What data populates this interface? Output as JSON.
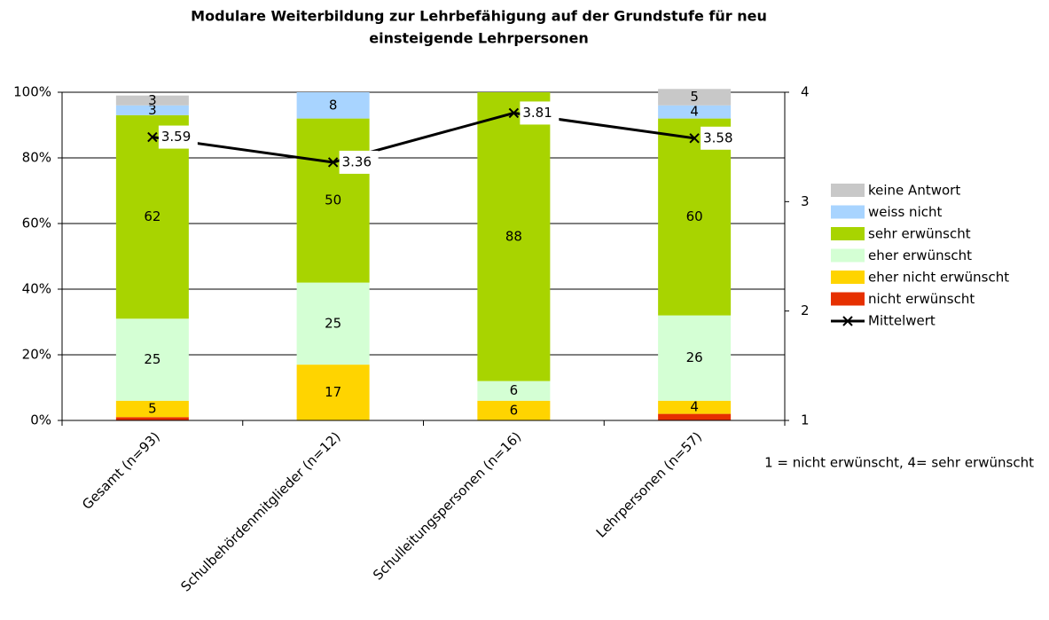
{
  "chart_data": {
    "type": "stacked_bar_line",
    "title": [
      "Modulare Weiterbildung zur Lehrbefähigung auf der Grundstufe für neu",
      "einsteigende Lehrpersonen"
    ],
    "categories": [
      "Gesamt (n=93)",
      "Schulbehördenmitglieder (n=12)",
      "Schulleitungspersonen (n=16)",
      "Lehrpersonen (n=57)"
    ],
    "series": [
      {
        "name": "nicht erwünscht",
        "color": "#e63000",
        "values": [
          1,
          0,
          0,
          2
        ],
        "labels": false
      },
      {
        "name": "eher nicht erwünscht",
        "color": "#ffd400",
        "values": [
          5,
          17,
          6,
          4
        ],
        "labels": true
      },
      {
        "name": "eher erwünscht",
        "color": "#d4ffd4",
        "values": [
          25,
          25,
          6,
          26
        ],
        "labels": true
      },
      {
        "name": "sehr erwünscht",
        "color": "#a8d400",
        "values": [
          62,
          50,
          88,
          60
        ],
        "labels": true
      },
      {
        "name": "weiss nicht",
        "color": "#a8d4ff",
        "values": [
          3,
          8,
          0,
          4
        ],
        "labels": true
      },
      {
        "name": "keine Antwort",
        "color": "#c8c8c8",
        "values": [
          3,
          0,
          0,
          5
        ],
        "labels": true
      },
      {
        "name": "Mittelwert",
        "color": "#000000",
        "type": "line",
        "axis": "y2",
        "values": [
          3.59,
          3.36,
          3.81,
          3.58
        ]
      }
    ],
    "ylim": [
      0,
      100
    ],
    "yticks": [
      {
        "value": 0,
        "label": "0%"
      },
      {
        "value": 20,
        "label": "20%"
      },
      {
        "value": 40,
        "label": "40%"
      },
      {
        "value": 60,
        "label": "60%"
      },
      {
        "value": 80,
        "label": "80%"
      },
      {
        "value": 100,
        "label": "100%"
      }
    ],
    "y2lim": [
      1,
      4
    ],
    "y2ticks": [
      1,
      2,
      3,
      4
    ],
    "grid": true,
    "legend": "right",
    "note": "1 = nicht erwünscht, 4= sehr erwünscht"
  }
}
